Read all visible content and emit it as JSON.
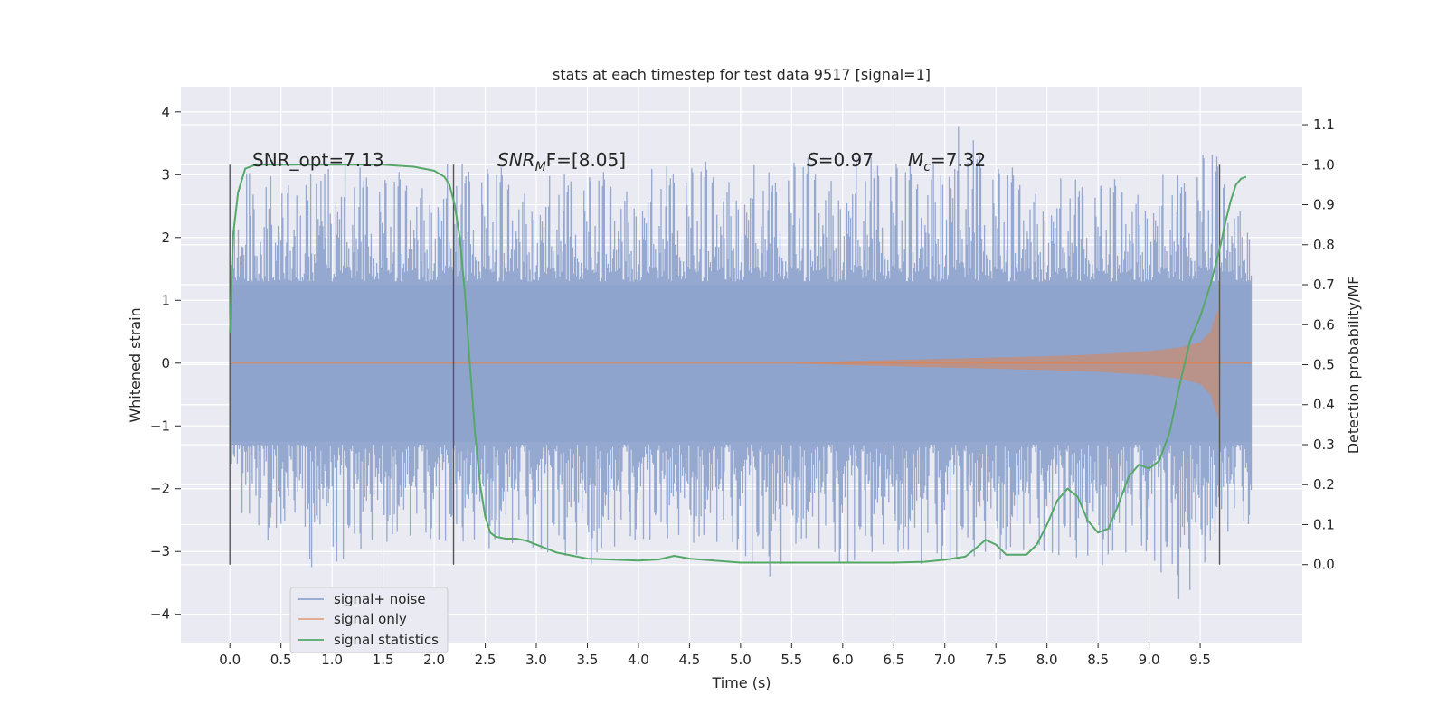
{
  "chart_data": {
    "type": "line",
    "title": "stats at each timestep for test data 9517 [signal=1]",
    "xlabel": "Time (s)",
    "ylabel": "Whitened strain",
    "y2label": "Detection probability/MF",
    "xlim": [
      -0.48,
      10.5
    ],
    "ylim": [
      -4.45,
      4.4
    ],
    "y2lim": [
      -0.195,
      1.195
    ],
    "grid": true,
    "x_ticks": [
      "0.0",
      "0.5",
      "1.0",
      "1.5",
      "2.0",
      "2.5",
      "3.0",
      "3.5",
      "4.0",
      "4.5",
      "5.0",
      "5.5",
      "6.0",
      "6.5",
      "7.0",
      "7.5",
      "8.0",
      "8.5",
      "9.0",
      "9.5"
    ],
    "y_ticks": [
      "4",
      "3",
      "2",
      "1",
      "0",
      "−1",
      "−2",
      "−3",
      "−4"
    ],
    "y2_ticks": [
      "1.1",
      "1.0",
      "0.9",
      "0.8",
      "0.7",
      "0.6",
      "0.5",
      "0.4",
      "0.3",
      "0.2",
      "0.1",
      "0.0"
    ],
    "annotations": {
      "snr_opt": "SNR_opt=7.13",
      "snr_mf_main": "SNR",
      "snr_mf_sub": "M",
      "snr_mf_rest": "F=[8.05]",
      "s_main": "S",
      "s_rest": "=0.97",
      "mc_main": "M",
      "mc_sub": "c",
      "mc_rest": "=7.32"
    },
    "vertical_markers": [
      0.0,
      2.19,
      9.69
    ],
    "legend": {
      "placement": "lower-left",
      "entries": [
        {
          "label": "signal+ noise",
          "color": "#8fa4cd"
        },
        {
          "label": "signal only",
          "color": "#dd8452"
        },
        {
          "label": "signal statistics",
          "color": "#55a868"
        }
      ]
    },
    "series": [
      {
        "name": "signal+ noise",
        "axis": "left",
        "color": "#8fa4cd",
        "description_range": [
          0.0,
          10.0
        ],
        "x": [
          0.0,
          0.1,
          0.2,
          0.3,
          0.5,
          0.6,
          0.8,
          0.9,
          1.0,
          1.5,
          2.0,
          2.5,
          3.0,
          3.5,
          4.0,
          5.0,
          5.35,
          5.5,
          6.0,
          6.5,
          6.75,
          7.0,
          7.5,
          8.0,
          8.5,
          9.0,
          9.35,
          9.6,
          9.65,
          10.0
        ],
        "upper": [
          1.75,
          2.6,
          3.4,
          3.1,
          3.3,
          3.0,
          3.15,
          3.3,
          3.3,
          3.0,
          3.2,
          3.2,
          3.0,
          3.05,
          3.1,
          3.3,
          3.0,
          3.3,
          3.3,
          3.3,
          3.1,
          4.05,
          3.2,
          3.0,
          2.9,
          3.05,
          3.0,
          3.6,
          3.35,
          2.4
        ],
        "lower": [
          -1.55,
          -2.4,
          -2.6,
          -3.0,
          -2.7,
          -2.9,
          -3.35,
          -2.6,
          -3.2,
          -2.9,
          -2.8,
          -3.0,
          -2.95,
          -3.3,
          -2.8,
          -3.0,
          -3.6,
          -2.9,
          -3.2,
          -3.0,
          -3.35,
          -3.1,
          -3.2,
          -3.0,
          -3.3,
          -3.0,
          -4.05,
          -3.0,
          -2.9,
          -2.55
        ]
      },
      {
        "name": "signal only",
        "axis": "left",
        "color": "#dd8452",
        "x": [
          0.0,
          5.5,
          6.0,
          6.5,
          7.0,
          7.5,
          8.0,
          8.5,
          9.0,
          9.3,
          9.5,
          9.6,
          9.65,
          9.69,
          9.7,
          10.0
        ],
        "amplitude": [
          0.0,
          0.0,
          0.03,
          0.05,
          0.07,
          0.09,
          0.11,
          0.14,
          0.19,
          0.25,
          0.33,
          0.5,
          0.75,
          0.95,
          0.0,
          0.0
        ]
      },
      {
        "name": "signal statistics",
        "axis": "right",
        "color": "#55a868",
        "x": [
          0.0,
          0.03,
          0.08,
          0.15,
          0.25,
          0.5,
          1.0,
          1.5,
          1.8,
          2.0,
          2.1,
          2.15,
          2.2,
          2.25,
          2.3,
          2.35,
          2.4,
          2.45,
          2.5,
          2.55,
          2.6,
          2.7,
          2.8,
          2.9,
          3.0,
          3.2,
          3.5,
          4.0,
          4.2,
          4.35,
          4.5,
          5.0,
          5.5,
          6.0,
          6.5,
          6.8,
          7.0,
          7.2,
          7.3,
          7.4,
          7.5,
          7.6,
          7.8,
          7.9,
          8.0,
          8.1,
          8.2,
          8.3,
          8.4,
          8.5,
          8.6,
          8.7,
          8.8,
          8.9,
          9.0,
          9.1,
          9.2,
          9.3,
          9.4,
          9.5,
          9.6,
          9.7,
          9.75,
          9.8,
          9.85,
          9.9,
          9.95
        ],
        "y": [
          0.58,
          0.82,
          0.93,
          0.99,
          1.0,
          1.0,
          1.0,
          1.0,
          0.995,
          0.985,
          0.97,
          0.95,
          0.9,
          0.82,
          0.68,
          0.5,
          0.33,
          0.2,
          0.12,
          0.08,
          0.07,
          0.065,
          0.065,
          0.06,
          0.05,
          0.03,
          0.015,
          0.01,
          0.013,
          0.022,
          0.015,
          0.005,
          0.005,
          0.005,
          0.005,
          0.007,
          0.012,
          0.02,
          0.04,
          0.062,
          0.05,
          0.025,
          0.025,
          0.05,
          0.1,
          0.16,
          0.19,
          0.17,
          0.11,
          0.08,
          0.09,
          0.15,
          0.22,
          0.25,
          0.24,
          0.26,
          0.33,
          0.45,
          0.56,
          0.62,
          0.7,
          0.8,
          0.86,
          0.91,
          0.95,
          0.965,
          0.97
        ]
      }
    ]
  }
}
